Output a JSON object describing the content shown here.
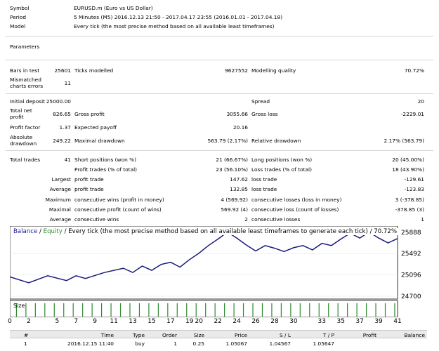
{
  "header": {
    "symbol_label": "Symbol",
    "symbol_value": "EURUSD.m (Euro vs US Dollar)",
    "period_label": "Period",
    "period_value": "5 Minutes (M5) 2016.12.13 21:50 - 2017.04.17 23:55 (2016.01.01 - 2017.04.18)",
    "model_label": "Model",
    "model_value": "Every tick (the most precise method based on all available least timeframes)",
    "parameters_label": "Parameters"
  },
  "stats": {
    "bars_label": "Bars in test",
    "bars_value": "25601",
    "ticks_label": "Ticks modelled",
    "ticks_value": "9627552",
    "quality_label": "Modelling quality",
    "quality_value": "70.72%",
    "mismatch_label": "Mismatched charts errors",
    "mismatch_value": "11",
    "deposit_label": "Initial deposit",
    "deposit_value": "25000.00",
    "spread_label": "Spread",
    "spread_value": "20",
    "netprofit_label": "Total net profit",
    "netprofit_value": "826.65",
    "grossprofit_label": "Gross profit",
    "grossprofit_value": "3055.66",
    "grossloss_label": "Gross loss",
    "grossloss_value": "-2229.01",
    "pf_label": "Profit factor",
    "pf_value": "1.37",
    "payoff_label": "Expected payoff",
    "payoff_value": "20.16",
    "absdd_label": "Absolute drawdown",
    "absdd_value": "249.22",
    "maxdd_label": "Maximal drawdown",
    "maxdd_value": "563.79 (2.17%)",
    "reldd_label": "Relative drawdown",
    "reldd_value": "2.17% (563.79)",
    "trades_label": "Total trades",
    "trades_value": "41",
    "short_label": "Short positions (won %)",
    "short_value": "21 (66.67%)",
    "long_label": "Long positions (won %)",
    "long_value": "20 (45.00%)",
    "pt_label": "Profit trades (% of total)",
    "pt_value": "23 (56.10%)",
    "lt_label": "Loss trades (% of total)",
    "lt_value": "18 (43.90%)",
    "largest_label": "Largest",
    "largest_pt_label": "profit trade",
    "largest_pt_value": "147.62",
    "largest_lt_label": "loss trade",
    "largest_lt_value": "-129.61",
    "average_label": "Average",
    "average_pt_label": "profit trade",
    "average_pt_value": "132.85",
    "average_lt_label": "loss trade",
    "average_lt_value": "-123.83",
    "maximum_label": "Maximum",
    "max_cw_label": "consecutive wins (profit in money)",
    "max_cw_value": "4 (569.92)",
    "max_cl_label": "consecutive losses (loss in money)",
    "max_cl_value": "3 (-378.85)",
    "maximal_label": "Maximal",
    "mxl_cp_label": "consecutive profit (count of wins)",
    "mxl_cp_value": "569.92 (4)",
    "mxl_cl_label": "consecutive loss (count of losses)",
    "mxl_cl_value": "-378.85 (3)",
    "average2_label": "Average",
    "avg_cw_label": "consecutive wins",
    "avg_cw_value": "2",
    "avg_cl_label": "consecutive losses",
    "avg_cl_value": "1"
  },
  "chart": {
    "legend_balance": "Balance",
    "legend_sep": "/",
    "legend_equity": "Equity",
    "legend_rest": "/ Every tick (the most precise method based on all available least timeframes to generate each tick) / 70.72%",
    "size_label": "Size",
    "colors": {
      "balance": "#1a1a7a",
      "equity": "#2e8b2e",
      "size_bar": "#2e8b2e",
      "legend_balance": "#1a1a9a",
      "legend_equity": "#2e8b2e"
    }
  },
  "chart_data": {
    "type": "line",
    "series": [
      {
        "name": "Balance",
        "x": [
          0,
          2,
          4,
          6,
          7,
          8,
          10,
          12,
          13,
          14,
          15,
          16,
          17,
          18,
          19,
          20,
          21,
          22,
          23,
          24,
          25,
          26,
          27,
          28,
          29,
          30,
          31,
          32,
          33,
          34,
          35,
          36,
          37,
          38,
          39,
          40,
          41
        ],
        "values": [
          25060,
          24950,
          25080,
          24990,
          25080,
          25030,
          25140,
          25220,
          25140,
          25260,
          25180,
          25290,
          25330,
          25240,
          25380,
          25500,
          25640,
          25760,
          25890,
          25780,
          25650,
          25540,
          25640,
          25590,
          25530,
          25600,
          25640,
          25560,
          25680,
          25640,
          25760,
          25870,
          25780,
          25890,
          25780,
          25690,
          25770
        ]
      }
    ],
    "y_ticks": [
      24700,
      25096,
      25492,
      25888
    ],
    "x_ticks": [
      0,
      2,
      5,
      7,
      9,
      11,
      13,
      15,
      17,
      19,
      20,
      22,
      24,
      26,
      28,
      30,
      33,
      35,
      37,
      39,
      41
    ],
    "xlim": [
      0,
      41
    ],
    "ylim": [
      24700,
      25950
    ],
    "size_bars": 41
  },
  "table": {
    "headers": {
      "num": "#",
      "time": "Time",
      "type": "Type",
      "order": "Order",
      "size": "Size",
      "price": "Price",
      "sl": "S / L",
      "tp": "T / P",
      "profit": "Profit",
      "balance": "Balance"
    },
    "rows": [
      {
        "num": "1",
        "time": "2016.12.15 11:40",
        "type": "buy",
        "order": "1",
        "size": "0.25",
        "price": "1.05067",
        "sl": "1.04567",
        "tp": "1.05647",
        "profit": "",
        "balance": ""
      }
    ]
  }
}
